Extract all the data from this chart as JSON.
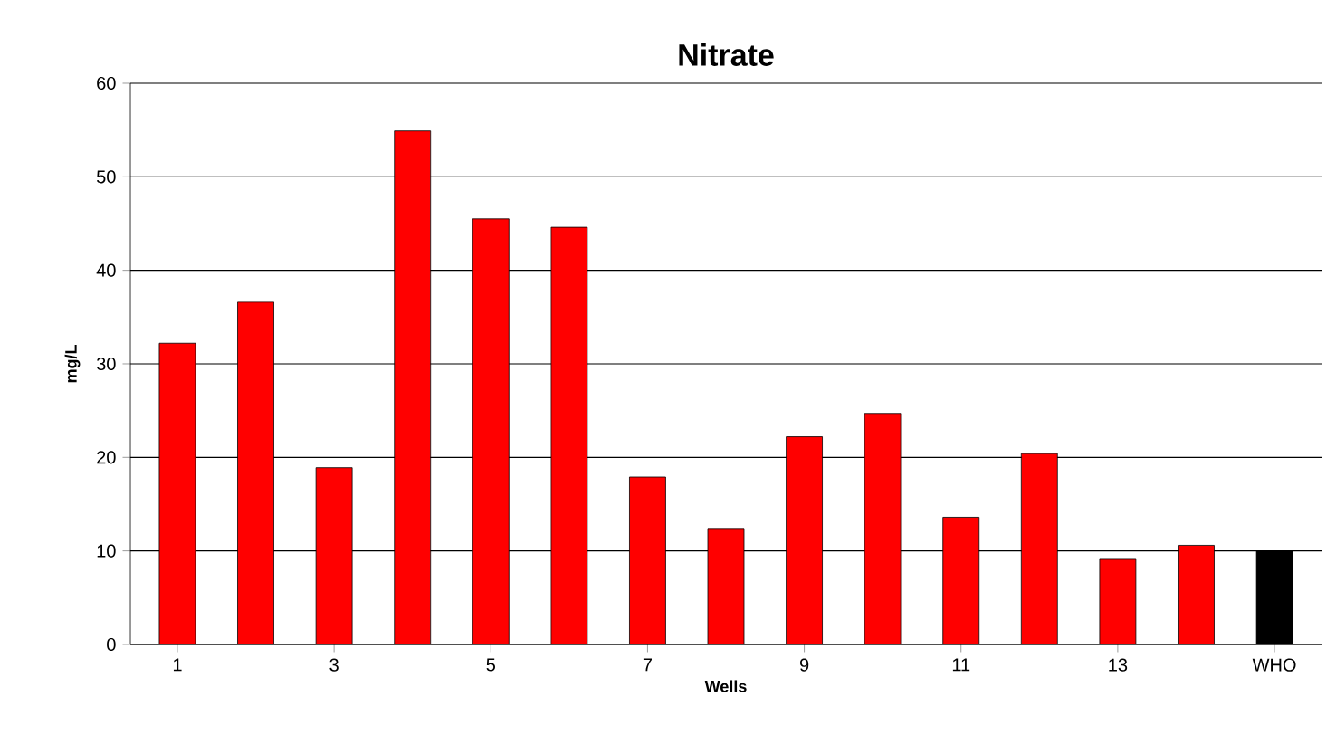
{
  "chart_data": {
    "type": "bar",
    "title": "Nitrate",
    "xlabel": "Wells",
    "ylabel": "mg/L",
    "categories": [
      "1",
      null,
      "3",
      null,
      "5",
      null,
      "7",
      null,
      "9",
      null,
      "11",
      null,
      "13",
      null,
      "WHO"
    ],
    "values": [
      32.2,
      36.6,
      18.9,
      54.9,
      45.5,
      44.6,
      17.9,
      12.4,
      22.2,
      24.7,
      13.6,
      20.4,
      9.1,
      10.6,
      10
    ],
    "colors": [
      "#ff0000",
      "#ff0000",
      "#ff0000",
      "#ff0000",
      "#ff0000",
      "#ff0000",
      "#ff0000",
      "#ff0000",
      "#ff0000",
      "#ff0000",
      "#ff0000",
      "#ff0000",
      "#ff0000",
      "#ff0000",
      "#000000"
    ],
    "ylim": [
      0,
      60
    ],
    "yticks": [
      0,
      10,
      20,
      30,
      40,
      50,
      60
    ],
    "grid": "y"
  }
}
